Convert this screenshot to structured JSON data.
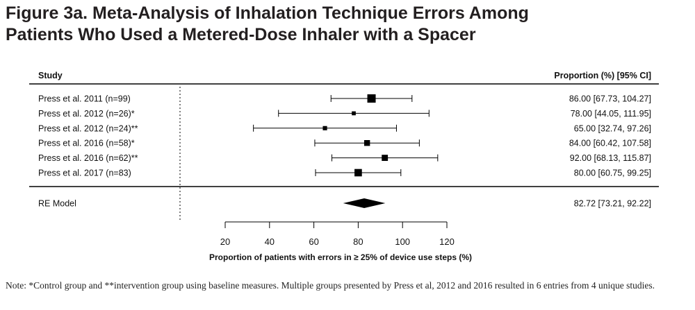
{
  "figure": {
    "title_line1": "Figure 3a. Meta-Analysis of Inhalation Technique Errors Among",
    "title_line2": "Patients Who Used a Metered-Dose Inhaler with a Spacer",
    "note": "Note: *Control group and **intervention group using baseline measures. Multiple groups presented by Press et al, 2012 and 2016 resulted in 6 entries from 4 unique studies."
  },
  "chart_data": {
    "type": "forest",
    "study_header": "Study",
    "estimate_header": "Proportion (%) [95% CI]",
    "xlabel": "Proportion of patients with errors in ≥ 25% of device use steps (%)",
    "xlim": [
      20,
      120
    ],
    "xticks": [
      "20",
      "40",
      "60",
      "80",
      "100",
      "120"
    ],
    "studies": [
      {
        "label": "Press et al. 2011  (n=99)",
        "estimate": 86.0,
        "lower": 67.73,
        "upper": 104.27,
        "ci_text": "86.00 [67.73, 104.27]",
        "weight": 1.0
      },
      {
        "label": "Press et al. 2012  (n=26)*",
        "estimate": 78.0,
        "lower": 44.05,
        "upper": 111.95,
        "ci_text": "78.00 [44.05, 111.95]",
        "weight": 0.3
      },
      {
        "label": "Press et al. 2012  (n=24)**",
        "estimate": 65.0,
        "lower": 32.74,
        "upper": 97.26,
        "ci_text": "65.00 [32.74,   97.26]",
        "weight": 0.35
      },
      {
        "label": "Press et al. 2016  (n=58)*",
        "estimate": 84.0,
        "lower": 60.42,
        "upper": 107.58,
        "ci_text": "84.00 [60.42, 107.58]",
        "weight": 0.6
      },
      {
        "label": "Press et al. 2016  (n=62)**",
        "estimate": 92.0,
        "lower": 68.13,
        "upper": 115.87,
        "ci_text": "92.00 [68.13, 115.87]",
        "weight": 0.65
      },
      {
        "label": "Press et al. 2017  (n=83)",
        "estimate": 80.0,
        "lower": 60.75,
        "upper": 99.25,
        "ci_text": "80.00 [60.75,   99.25]",
        "weight": 0.85
      }
    ],
    "summary": {
      "label": "RE Model",
      "estimate": 82.72,
      "lower": 73.21,
      "upper": 92.22,
      "ci_text": "82.72 [73.21,   92.22]"
    },
    "reference_line": 0
  }
}
